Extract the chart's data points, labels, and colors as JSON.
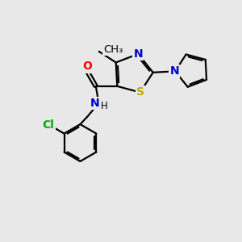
{
  "bg_color": "#e8e8e8",
  "bond_color": "#000000",
  "atom_colors": {
    "O": "#ff0000",
    "N": "#0000cc",
    "S": "#bbaa00",
    "Cl": "#00aa00",
    "C": "#000000"
  },
  "font_size": 10,
  "figsize": [
    3.0,
    3.0
  ],
  "dpi": 100
}
